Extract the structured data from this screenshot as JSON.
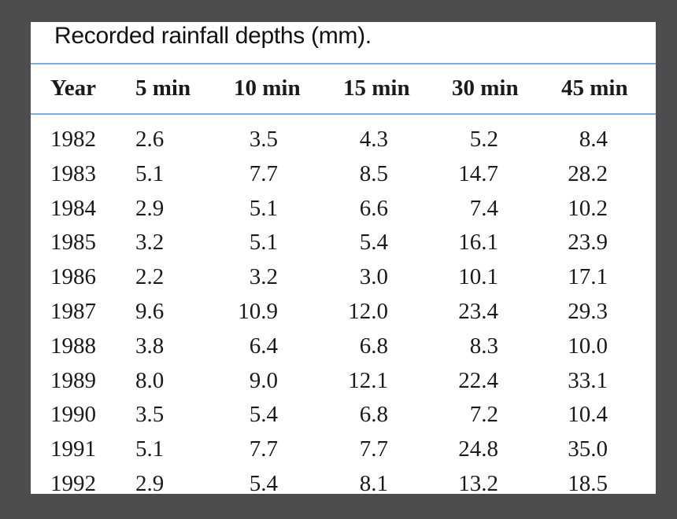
{
  "title": "Recorded rainfall depths (mm).",
  "headers": [
    "Year",
    "5 min",
    "10 min",
    "15 min",
    "30 min",
    "45 min"
  ],
  "rows": [
    [
      "1982",
      "2.6",
      "3.5",
      "4.3",
      "5.2",
      "8.4"
    ],
    [
      "1983",
      "5.1",
      "7.7",
      "8.5",
      "14.7",
      "28.2"
    ],
    [
      "1984",
      "2.9",
      "5.1",
      "6.6",
      "7.4",
      "10.2"
    ],
    [
      "1985",
      "3.2",
      "5.1",
      "5.4",
      "16.1",
      "23.9"
    ],
    [
      "1986",
      "2.2",
      "3.2",
      "3.0",
      "10.1",
      "17.1"
    ],
    [
      "1987",
      "9.6",
      "10.9",
      "12.0",
      "23.4",
      "29.3"
    ],
    [
      "1988",
      "3.8",
      "6.4",
      "6.8",
      "8.3",
      "10.0"
    ],
    [
      "1989",
      "8.0",
      "9.0",
      "12.1",
      "22.4",
      "33.1"
    ],
    [
      "1990",
      "3.5",
      "5.4",
      "6.8",
      "7.2",
      "10.4"
    ],
    [
      "1991",
      "5.1",
      "7.7",
      "7.7",
      "24.8",
      "35.0"
    ],
    [
      "1992",
      "2.9",
      "5.4",
      "8.1",
      "13.2",
      "18.5"
    ]
  ],
  "colors": {
    "background": "#4d4d4f",
    "sheet": "#ffffff",
    "rule": "#7aaede",
    "text": "#1a1a1a"
  }
}
